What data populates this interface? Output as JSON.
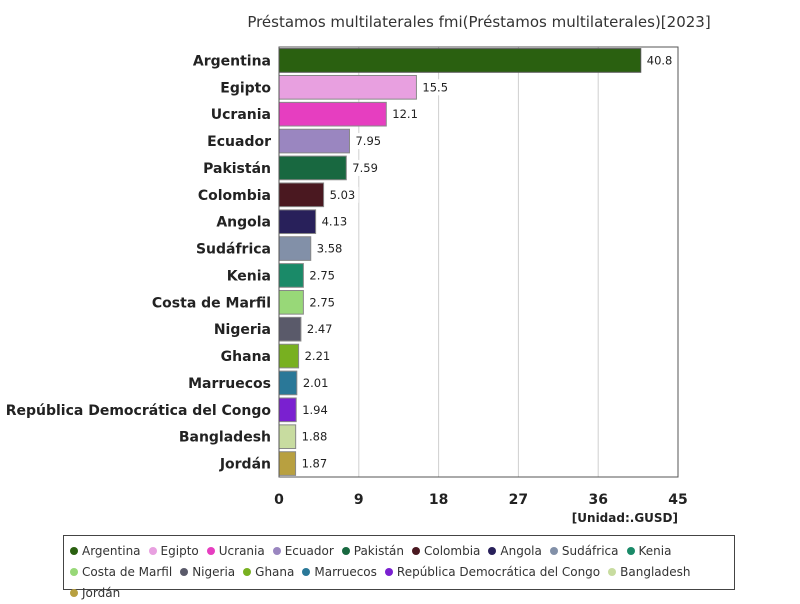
{
  "chart_data": {
    "type": "bar",
    "orientation": "horizontal",
    "title": "Préstamos multilaterales fmi(Préstamos multilaterales)[2023]",
    "unit": "[Unidad:.GUSD]",
    "xlim": [
      0,
      45
    ],
    "ticks": [
      "0",
      "9",
      "18",
      "27",
      "36",
      "45"
    ],
    "grid": true,
    "legend_position": "bottom",
    "categories": [
      "Argentina",
      "Egipto",
      "Ucrania",
      "Ecuador",
      "Pakistán",
      "Colombia",
      "Angola",
      "Sudáfrica",
      "Kenia",
      "Costa de Marfil",
      "Nigeria",
      "Ghana",
      "Marruecos",
      "República Democrática del Congo",
      "Bangladesh",
      "Jordán"
    ],
    "values": [
      40.8,
      15.5,
      12.1,
      7.95,
      7.59,
      5.03,
      4.13,
      3.58,
      2.75,
      2.75,
      2.47,
      2.21,
      2.01,
      1.94,
      1.88,
      1.87
    ],
    "value_labels": [
      "40.8",
      "15.5",
      "12.1",
      "7.95",
      "7.59",
      "5.03",
      "4.13",
      "3.58",
      "2.75",
      "2.75",
      "2.47",
      "2.21",
      "2.01",
      "1.94",
      "1.88",
      "1.87"
    ],
    "colors": [
      "#2a6010",
      "#e8a0e0",
      "#e63ec0",
      "#9a86c0",
      "#186840",
      "#4a1820",
      "#28205a",
      "#8290a8",
      "#1a8a68",
      "#98d878",
      "#5a5a6a",
      "#78b020",
      "#2a7898",
      "#7a20d0",
      "#c8dca0",
      "#b8a040"
    ]
  }
}
